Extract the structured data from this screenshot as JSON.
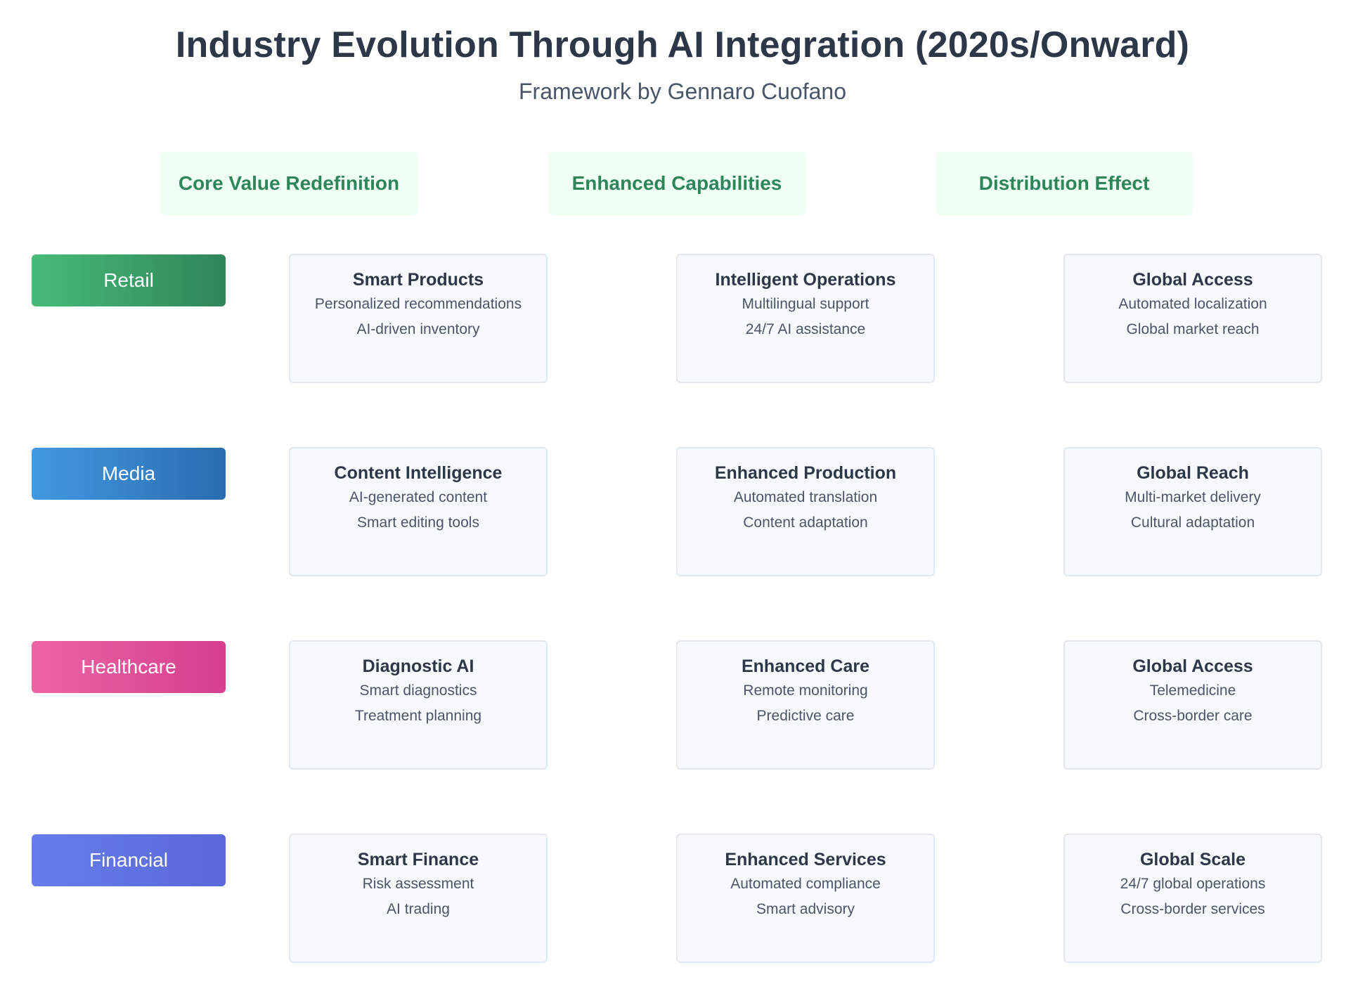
{
  "header": {
    "title": "Industry Evolution Through AI Integration (2020s/Onward)",
    "subtitle": "Framework by Gennaro Cuofano"
  },
  "columns": [
    "Core Value Redefinition",
    "Enhanced Capabilities",
    "Distribution Effect"
  ],
  "rows": [
    {
      "industry": "Retail",
      "gradient": [
        "#48bb78",
        "#2f855a"
      ],
      "cells": [
        {
          "title": "Smart Products",
          "items": [
            "Personalized recommendations",
            "AI-driven inventory"
          ]
        },
        {
          "title": "Intelligent Operations",
          "items": [
            "Multilingual support",
            "24/7 AI assistance"
          ]
        },
        {
          "title": "Global Access",
          "items": [
            "Automated localization",
            "Global market reach"
          ]
        }
      ]
    },
    {
      "industry": "Media",
      "gradient": [
        "#4299e1",
        "#2b6cb0"
      ],
      "cells": [
        {
          "title": "Content Intelligence",
          "items": [
            "AI-generated content",
            "Smart editing tools"
          ]
        },
        {
          "title": "Enhanced Production",
          "items": [
            "Automated translation",
            "Content adaptation"
          ]
        },
        {
          "title": "Global Reach",
          "items": [
            "Multi-market delivery",
            "Cultural adaptation"
          ]
        }
      ]
    },
    {
      "industry": "Healthcare",
      "gradient": [
        "#ed64a6",
        "#d53f8c"
      ],
      "cells": [
        {
          "title": "Diagnostic AI",
          "items": [
            "Smart diagnostics",
            "Treatment planning"
          ]
        },
        {
          "title": "Enhanced Care",
          "items": [
            "Remote monitoring",
            "Predictive care"
          ]
        },
        {
          "title": "Global Access",
          "items": [
            "Telemedicine",
            "Cross-border care"
          ]
        }
      ]
    },
    {
      "industry": "Financial",
      "gradient": [
        "#667eea",
        "#5a67d8"
      ],
      "cells": [
        {
          "title": "Smart Finance",
          "items": [
            "Risk assessment",
            "AI trading"
          ]
        },
        {
          "title": "Enhanced Services",
          "items": [
            "Automated compliance",
            "Smart advisory"
          ]
        },
        {
          "title": "Global Scale",
          "items": [
            "24/7 global operations",
            "Cross-border services"
          ]
        }
      ]
    }
  ]
}
